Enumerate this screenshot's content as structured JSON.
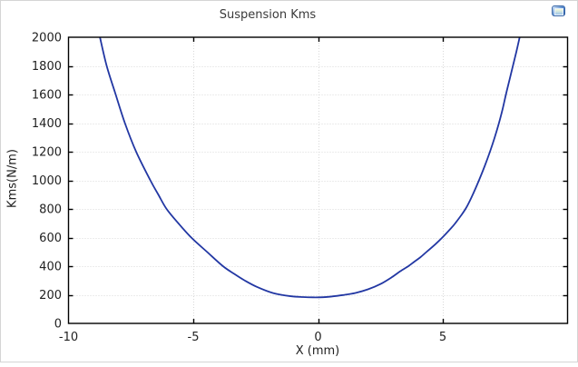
{
  "window": {
    "border_color": "#d5d5d5",
    "background": "#ffffff"
  },
  "toolbar": {
    "plot_button": "plot-window-button"
  },
  "chart_data": {
    "type": "line",
    "title": "Suspension Kms",
    "xlabel": "X (mm)",
    "ylabel": "Kms(N/m)",
    "xlim": [
      -10,
      10
    ],
    "ylim": [
      0,
      2000
    ],
    "xticks": [
      -10,
      -5,
      0,
      5
    ],
    "yticks": [
      0,
      200,
      400,
      600,
      800,
      1000,
      1200,
      1400,
      1600,
      1800,
      2000
    ],
    "grid": true,
    "grid_color": "#d8d8d8",
    "line_color": "#2237a3",
    "axis_color": "#000000",
    "points": [
      [
        -8.74,
        2000
      ],
      [
        -8.47,
        1800
      ],
      [
        -8.11,
        1600
      ],
      [
        -7.74,
        1400
      ],
      [
        -7.29,
        1200
      ],
      [
        -6.72,
        1000
      ],
      [
        -6.4,
        900
      ],
      [
        -6.07,
        800
      ],
      [
        -5.6,
        700
      ],
      [
        -5.08,
        600
      ],
      [
        -4.45,
        500
      ],
      [
        -3.81,
        400
      ],
      [
        -3.35,
        345
      ],
      [
        -2.94,
        300
      ],
      [
        -2.45,
        255
      ],
      [
        -1.8,
        212
      ],
      [
        -1.1,
        190
      ],
      [
        -0.6,
        184
      ],
      [
        -0.2,
        182
      ],
      [
        0.2,
        183
      ],
      [
        0.5,
        187
      ],
      [
        1.0,
        198
      ],
      [
        1.5,
        213
      ],
      [
        2.0,
        238
      ],
      [
        2.5,
        275
      ],
      [
        2.95,
        322
      ],
      [
        3.3,
        365
      ],
      [
        3.62,
        400
      ],
      [
        3.85,
        430
      ],
      [
        4.1,
        462
      ],
      [
        4.35,
        500
      ],
      [
        4.7,
        553
      ],
      [
        4.98,
        600
      ],
      [
        5.25,
        650
      ],
      [
        5.5,
        700
      ],
      [
        5.91,
        800
      ],
      [
        6.2,
        900
      ],
      [
        6.45,
        1000
      ],
      [
        6.68,
        1100
      ],
      [
        6.89,
        1200
      ],
      [
        7.08,
        1300
      ],
      [
        7.25,
        1400
      ],
      [
        7.4,
        1500
      ],
      [
        7.53,
        1600
      ],
      [
        7.67,
        1700
      ],
      [
        7.81,
        1800
      ],
      [
        7.95,
        1900
      ],
      [
        8.08,
        2000
      ]
    ]
  }
}
